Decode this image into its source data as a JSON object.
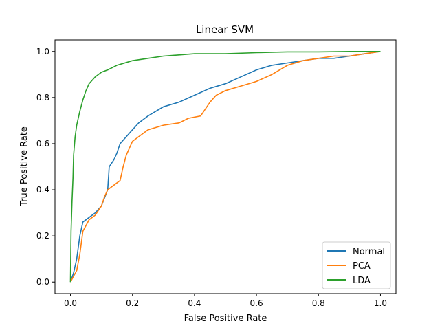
{
  "chart_data": {
    "type": "line",
    "title": "Linear SVM",
    "xlabel": "False Positive Rate",
    "ylabel": "True Positive Rate",
    "xlim": [
      -0.05,
      1.05
    ],
    "ylim": [
      -0.05,
      1.05
    ],
    "xticks": [
      0.0,
      0.2,
      0.4,
      0.6,
      0.8,
      1.0
    ],
    "xtick_labels": [
      "0.0",
      "0.2",
      "0.4",
      "0.6",
      "0.8",
      "1.0"
    ],
    "yticks": [
      0.0,
      0.2,
      0.4,
      0.6,
      0.8,
      1.0
    ],
    "ytick_labels": [
      "0.0",
      "0.2",
      "0.4",
      "0.6",
      "0.8",
      "1.0"
    ],
    "grid": false,
    "legend_position": "lower-right",
    "series": [
      {
        "name": "Normal",
        "color": "#1f77b4",
        "x": [
          0.0,
          0.01,
          0.02,
          0.03,
          0.04,
          0.05,
          0.06,
          0.08,
          0.1,
          0.12,
          0.125,
          0.13,
          0.14,
          0.15,
          0.16,
          0.18,
          0.2,
          0.22,
          0.25,
          0.3,
          0.35,
          0.4,
          0.45,
          0.5,
          0.55,
          0.6,
          0.65,
          0.7,
          0.75,
          0.8,
          0.85,
          0.9,
          0.95,
          1.0
        ],
        "y": [
          0.0,
          0.04,
          0.1,
          0.2,
          0.26,
          0.27,
          0.28,
          0.3,
          0.33,
          0.4,
          0.5,
          0.51,
          0.53,
          0.56,
          0.6,
          0.63,
          0.66,
          0.69,
          0.72,
          0.76,
          0.78,
          0.81,
          0.84,
          0.86,
          0.89,
          0.92,
          0.94,
          0.95,
          0.96,
          0.97,
          0.97,
          0.98,
          0.99,
          1.0
        ]
      },
      {
        "name": "PCA",
        "color": "#ff7f0e",
        "x": [
          0.0,
          0.02,
          0.03,
          0.04,
          0.06,
          0.08,
          0.1,
          0.11,
          0.12,
          0.14,
          0.16,
          0.17,
          0.18,
          0.2,
          0.22,
          0.25,
          0.3,
          0.35,
          0.38,
          0.42,
          0.45,
          0.47,
          0.5,
          0.55,
          0.6,
          0.65,
          0.7,
          0.75,
          0.8,
          0.85,
          0.9,
          0.95,
          1.0
        ],
        "y": [
          0.0,
          0.05,
          0.12,
          0.22,
          0.27,
          0.29,
          0.33,
          0.37,
          0.4,
          0.42,
          0.44,
          0.5,
          0.55,
          0.61,
          0.63,
          0.66,
          0.68,
          0.69,
          0.71,
          0.72,
          0.78,
          0.81,
          0.83,
          0.85,
          0.87,
          0.9,
          0.94,
          0.96,
          0.97,
          0.98,
          0.98,
          0.99,
          1.0
        ]
      },
      {
        "name": "LDA",
        "color": "#2ca02c",
        "x": [
          0.0,
          0.002,
          0.005,
          0.008,
          0.01,
          0.015,
          0.02,
          0.03,
          0.04,
          0.05,
          0.06,
          0.08,
          0.1,
          0.12,
          0.15,
          0.2,
          0.25,
          0.3,
          0.35,
          0.4,
          0.5,
          0.6,
          0.7,
          0.8,
          0.9,
          1.0
        ],
        "y": [
          0.0,
          0.22,
          0.35,
          0.45,
          0.55,
          0.63,
          0.68,
          0.74,
          0.79,
          0.83,
          0.86,
          0.89,
          0.91,
          0.92,
          0.94,
          0.96,
          0.97,
          0.98,
          0.985,
          0.99,
          0.99,
          0.995,
          0.998,
          0.998,
          1.0,
          1.0
        ]
      }
    ]
  }
}
